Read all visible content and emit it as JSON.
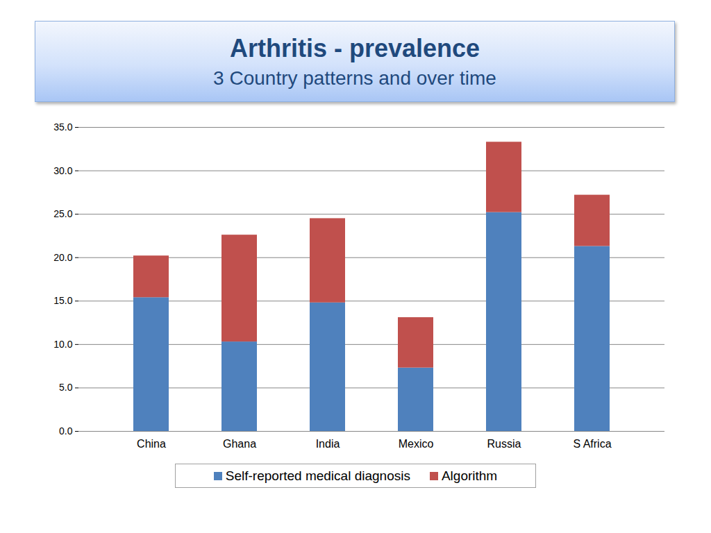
{
  "chart_data": {
    "type": "bar",
    "title": "Arthritis - prevalence",
    "subtitle": "3 Country patterns and over time",
    "categories": [
      "China",
      "Ghana",
      "India",
      "Mexico",
      "Russia",
      "S Africa"
    ],
    "series": [
      {
        "name": "Self-reported medical diagnosis",
        "color": "#4f81bd",
        "values": [
          15.4,
          10.3,
          14.8,
          7.3,
          25.2,
          21.3
        ]
      },
      {
        "name": "Algorithm",
        "color": "#c0504d",
        "values": [
          4.8,
          12.3,
          9.7,
          5.8,
          8.1,
          5.9
        ]
      }
    ],
    "stacked": true,
    "ylim": [
      0,
      35
    ],
    "yticks": [
      {
        "value": 0,
        "label": "0.0"
      },
      {
        "value": 5,
        "label": "5.0"
      },
      {
        "value": 10,
        "label": "10.0"
      },
      {
        "value": 15,
        "label": "15.0"
      },
      {
        "value": 20,
        "label": "20.0"
      },
      {
        "value": 25,
        "label": "25.0"
      },
      {
        "value": 30,
        "label": "30.0"
      },
      {
        "value": 35,
        "label": "35.0"
      }
    ],
    "grid": true,
    "legend": "bottom"
  }
}
